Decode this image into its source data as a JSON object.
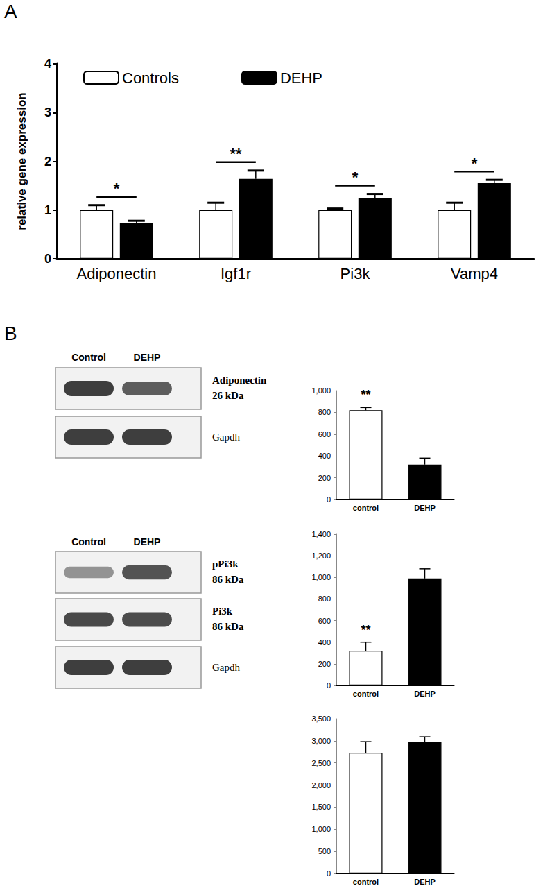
{
  "panel_labels": [
    "A",
    "B"
  ],
  "chart_data": [
    {
      "type": "bar",
      "ylabel": "relative gene expression",
      "categories": [
        "Adiponectin",
        "Igf1r",
        "Pi3k",
        "Vamp4"
      ],
      "series": [
        {
          "name": "Controls",
          "color": "#ffffff",
          "values": [
            1,
            1,
            1,
            1
          ],
          "errors": [
            0.1,
            0.15,
            0.03,
            0.15
          ]
        },
        {
          "name": "DEHP",
          "color": "#000000",
          "values": [
            0.73,
            1.64,
            1.25,
            1.55
          ],
          "errors": [
            0.05,
            0.17,
            0.08,
            0.07
          ]
        }
      ],
      "significance": [
        "*",
        "**",
        "*",
        "*"
      ],
      "ylim": [
        0,
        4
      ],
      "yticks": [
        0,
        1,
        2,
        3,
        4
      ],
      "legend": "top-left"
    },
    {
      "type": "bar",
      "categories": [
        "control",
        "DEHP"
      ],
      "values": [
        820,
        320
      ],
      "errors": [
        25,
        60
      ],
      "colors": [
        "#ffffff",
        "#000000"
      ],
      "significance": "**",
      "ylim": [
        0,
        1000
      ],
      "yticks": [
        0,
        200,
        400,
        600,
        800,
        1000
      ]
    },
    {
      "type": "bar",
      "categories": [
        "control",
        "DEHP"
      ],
      "values": [
        320,
        990
      ],
      "errors": [
        80,
        90
      ],
      "colors": [
        "#ffffff",
        "#000000"
      ],
      "significance": "**",
      "ylim": [
        0,
        1400
      ],
      "yticks": [
        0,
        200,
        400,
        600,
        800,
        1000,
        1200,
        1400
      ]
    },
    {
      "type": "bar",
      "categories": [
        "control",
        "DEHP"
      ],
      "values": [
        2730,
        2980
      ],
      "errors": [
        250,
        110
      ],
      "colors": [
        "#ffffff",
        "#000000"
      ],
      "ylim": [
        0,
        3500
      ],
      "yticks": [
        0,
        500,
        1000,
        1500,
        2000,
        2500,
        3000,
        3500
      ]
    }
  ],
  "blots": [
    {
      "lanes": [
        "Control",
        "DEHP"
      ],
      "rows": [
        {
          "label": "Adiponectin",
          "size": "26 kDa"
        },
        {
          "label": "Gapdh"
        }
      ]
    },
    {
      "lanes": [
        "Control",
        "DEHP"
      ],
      "rows": [
        {
          "label": "pPi3k",
          "size": "86 kDa"
        },
        {
          "label": "Pi3k",
          "size": "86 kDa"
        },
        {
          "label": "Gapdh"
        }
      ]
    }
  ]
}
